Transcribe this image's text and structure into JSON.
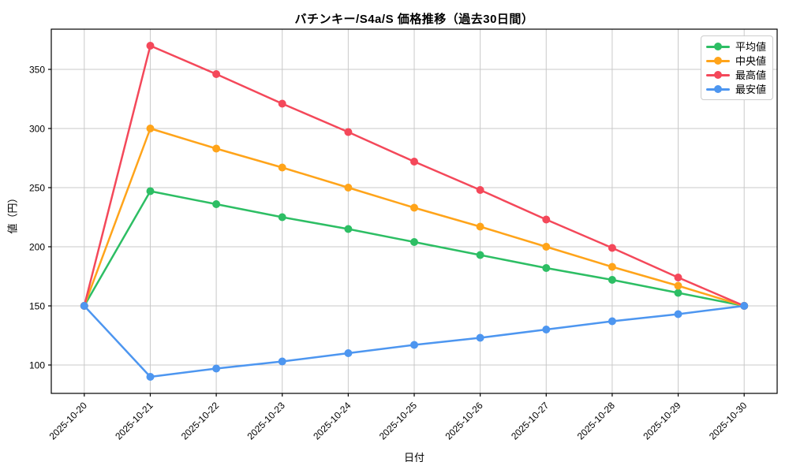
{
  "chart_data": {
    "type": "line",
    "title": "バチンキー/S4a/S 価格推移（過去30日間）",
    "xlabel": "日付",
    "ylabel": "値（円）",
    "categories": [
      "2025-10-20",
      "2025-10-21",
      "2025-10-22",
      "2025-10-23",
      "2025-10-24",
      "2025-10-25",
      "2025-10-26",
      "2025-10-27",
      "2025-10-28",
      "2025-10-29",
      "2025-10-30"
    ],
    "series": [
      {
        "name": "平均値",
        "color": "#2dbe64",
        "values": [
          150,
          247,
          236,
          225,
          215,
          204,
          193,
          182,
          172,
          161,
          150
        ]
      },
      {
        "name": "中央値",
        "color": "#ffa41a",
        "values": [
          150,
          300,
          283,
          267,
          250,
          233,
          217,
          200,
          183,
          167,
          150
        ]
      },
      {
        "name": "最高値",
        "color": "#f4485a",
        "values": [
          150,
          370,
          346,
          321,
          297,
          272,
          248,
          223,
          199,
          174,
          150
        ]
      },
      {
        "name": "最安値",
        "color": "#4d96f0",
        "values": [
          150,
          90,
          97,
          103,
          110,
          117,
          123,
          130,
          137,
          143,
          150
        ]
      }
    ],
    "ylim": [
      76,
      384
    ],
    "yticks": [
      100,
      150,
      200,
      250,
      300,
      350
    ],
    "grid": true,
    "legend_position": "upper right",
    "x_tick_rotation": -45,
    "marker": "circle"
  },
  "colors": {
    "background": "#ffffff",
    "grid": "#c9c9c9",
    "spine": "#000000",
    "tick_text": "#000000"
  }
}
